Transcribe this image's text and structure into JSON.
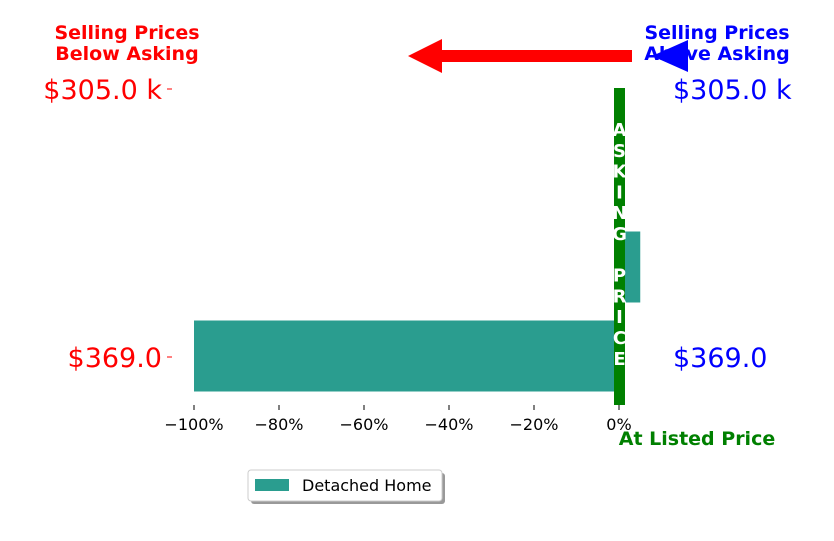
{
  "header": {
    "left_title": [
      "Selling Prices",
      "Below Asking"
    ],
    "right_title": [
      "Selling Prices",
      "Above Asking"
    ],
    "left_color": "#ff0000",
    "right_color": "#0000ff"
  },
  "center": {
    "vertical_label": "ASKING PRICE",
    "bottom_label": "At Listed Price",
    "line_color": "#008000"
  },
  "legend": {
    "label": "Detached Home",
    "color": "#2a9d8f"
  },
  "chart_data": {
    "type": "bar",
    "orientation": "horizontal",
    "categories": [
      "$305.0 k",
      "$369.0"
    ],
    "right_labels": [
      "$305.0 k",
      "$369.0"
    ],
    "series": [
      {
        "name": "Detached Home",
        "values": [
          5,
          -100
        ]
      }
    ],
    "xlim": [
      -105,
      12
    ],
    "xticks": [
      -100,
      -80,
      -60,
      -40,
      -20,
      0
    ],
    "xtick_labels": [
      "−100%",
      "−80%",
      "−60%",
      "−40%",
      "−20%",
      "0%"
    ],
    "xlabel": "",
    "ylabel": "",
    "grid": false,
    "legend_position": "below"
  }
}
